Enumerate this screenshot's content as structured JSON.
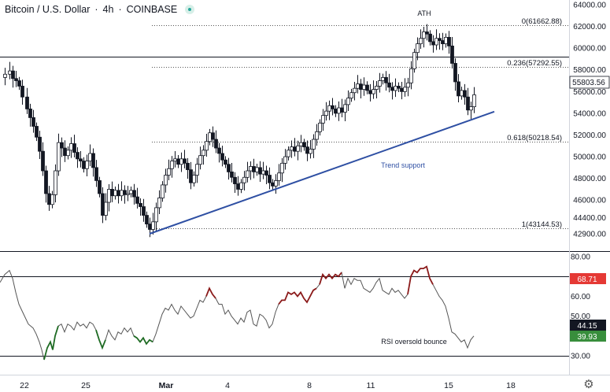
{
  "header": {
    "symbol": "Bitcoin / U.S. Dollar",
    "separator1": "·",
    "interval": "4h",
    "separator2": "·",
    "exchange": "COINBASE",
    "status_icon": "live-status-dot"
  },
  "chart_data": [
    {
      "type": "candlestick",
      "title": "Bitcoin / U.S. Dollar · 4h · COINBASE",
      "y_ticks": [
        64000,
        62000,
        60000,
        58000,
        56000,
        54000,
        52000,
        50000,
        48000,
        46000,
        44400,
        42900
      ],
      "y_tick_labels": [
        "64000.00",
        "62000.00",
        "60000.00",
        "58000.00",
        "56000.00",
        "54000.00",
        "52000.00",
        "50000.00",
        "48000.00",
        "46000.00",
        "44400.00",
        "42900.00"
      ],
      "x_tick_labels": [
        "22",
        "25",
        "Mar",
        "4",
        "8",
        "11",
        "15",
        "18"
      ],
      "price_series": [
        [
          0,
          57300
        ],
        [
          6,
          57600
        ],
        [
          12,
          57900
        ],
        [
          16,
          57200
        ],
        [
          20,
          57000
        ],
        [
          24,
          56500
        ],
        [
          28,
          55500
        ],
        [
          34,
          54400
        ],
        [
          38,
          53600
        ],
        [
          42,
          52800
        ],
        [
          46,
          51800
        ],
        [
          50,
          50500
        ],
        [
          54,
          48700
        ],
        [
          58,
          46600
        ],
        [
          62,
          45600
        ],
        [
          66,
          46500
        ],
        [
          70,
          48700
        ],
        [
          74,
          51300
        ],
        [
          78,
          50800
        ],
        [
          82,
          50100
        ],
        [
          86,
          50600
        ],
        [
          90,
          51200
        ],
        [
          94,
          50400
        ],
        [
          98,
          49800
        ],
        [
          102,
          49600
        ],
        [
          106,
          48900
        ],
        [
          110,
          49600
        ],
        [
          114,
          50300
        ],
        [
          118,
          49000
        ],
        [
          122,
          47800
        ],
        [
          126,
          46600
        ],
        [
          130,
          44600
        ],
        [
          134,
          45800
        ],
        [
          138,
          47000
        ],
        [
          142,
          46400
        ],
        [
          146,
          46900
        ],
        [
          150,
          46400
        ],
        [
          154,
          46900
        ],
        [
          158,
          46500
        ],
        [
          162,
          46600
        ],
        [
          166,
          46900
        ],
        [
          170,
          46300
        ],
        [
          174,
          45700
        ],
        [
          178,
          45400
        ],
        [
          182,
          44600
        ],
        [
          186,
          43800
        ],
        [
          190,
          43300
        ],
        [
          194,
          44000
        ],
        [
          198,
          45300
        ],
        [
          202,
          46200
        ],
        [
          206,
          47400
        ],
        [
          210,
          48300
        ],
        [
          214,
          48900
        ],
        [
          218,
          49600
        ],
        [
          222,
          49800
        ],
        [
          226,
          49300
        ],
        [
          230,
          49800
        ],
        [
          234,
          49400
        ],
        [
          238,
          48800
        ],
        [
          242,
          47600
        ],
        [
          246,
          48300
        ],
        [
          250,
          49300
        ],
        [
          254,
          50100
        ],
        [
          258,
          50600
        ],
        [
          262,
          51400
        ],
        [
          266,
          52200
        ],
        [
          270,
          51600
        ],
        [
          274,
          50800
        ],
        [
          278,
          50300
        ],
        [
          282,
          49700
        ],
        [
          286,
          49300
        ],
        [
          290,
          48600
        ],
        [
          294,
          48100
        ],
        [
          298,
          47500
        ],
        [
          302,
          47000
        ],
        [
          306,
          47600
        ],
        [
          310,
          48100
        ],
        [
          314,
          48700
        ],
        [
          318,
          49100
        ],
        [
          322,
          48600
        ],
        [
          326,
          49000
        ],
        [
          330,
          48400
        ],
        [
          334,
          48700
        ],
        [
          338,
          48300
        ],
        [
          342,
          47600
        ],
        [
          346,
          47300
        ],
        [
          350,
          47800
        ],
        [
          354,
          48500
        ],
        [
          358,
          49400
        ],
        [
          362,
          50000
        ],
        [
          366,
          50600
        ],
        [
          370,
          50900
        ],
        [
          374,
          50500
        ],
        [
          378,
          51000
        ],
        [
          382,
          51300
        ],
        [
          386,
          50900
        ],
        [
          390,
          50300
        ],
        [
          394,
          50700
        ],
        [
          398,
          51600
        ],
        [
          402,
          52300
        ],
        [
          406,
          53100
        ],
        [
          410,
          53800
        ],
        [
          414,
          54200
        ],
        [
          418,
          54700
        ],
        [
          422,
          54400
        ],
        [
          426,
          54000
        ],
        [
          430,
          54500
        ],
        [
          434,
          54100
        ],
        [
          438,
          54800
        ],
        [
          442,
          55400
        ],
        [
          446,
          55900
        ],
        [
          450,
          56300
        ],
        [
          454,
          56700
        ],
        [
          458,
          56200
        ],
        [
          462,
          56600
        ],
        [
          466,
          56100
        ],
        [
          470,
          55800
        ],
        [
          474,
          56200
        ],
        [
          478,
          56500
        ],
        [
          482,
          57000
        ],
        [
          486,
          57300
        ],
        [
          490,
          56800
        ],
        [
          494,
          56400
        ],
        [
          498,
          56100
        ],
        [
          502,
          56500
        ],
        [
          506,
          56300
        ],
        [
          510,
          56000
        ],
        [
          514,
          56400
        ],
        [
          518,
          56800
        ],
        [
          522,
          58100
        ],
        [
          526,
          59600
        ],
        [
          530,
          60400
        ],
        [
          534,
          60900
        ],
        [
          538,
          61500
        ],
        [
          542,
          61300
        ],
        [
          546,
          60600
        ],
        [
          550,
          60300
        ],
        [
          554,
          60900
        ],
        [
          558,
          60700
        ],
        [
          562,
          60400
        ],
        [
          566,
          61000
        ],
        [
          570,
          60200
        ],
        [
          574,
          58600
        ],
        [
          578,
          56900
        ],
        [
          582,
          55600
        ],
        [
          586,
          56100
        ],
        [
          590,
          55500
        ],
        [
          594,
          54300
        ],
        [
          598,
          54600
        ],
        [
          602,
          55700
        ]
      ],
      "price_line_values": [
        61662.88,
        57292.55,
        50218.54,
        43144.53
      ],
      "ath_marker": {
        "x": 538,
        "price": 61700
      },
      "reference_line_price": 57900,
      "trend_support": {
        "start": [
          190,
          42900
        ],
        "end": [
          628,
          54150
        ]
      }
    },
    {
      "type": "line",
      "y_ticks": [
        80,
        70,
        60,
        50,
        40,
        30
      ],
      "y_tick_labels": [
        "80.00",
        "70.00",
        "60.00",
        "50.00",
        "40.00",
        "30.00"
      ],
      "overbought_line": 70,
      "oversold_line": 30,
      "rsi_series": [
        [
          0,
          67
        ],
        [
          6,
          71
        ],
        [
          12,
          73
        ],
        [
          16,
          69
        ],
        [
          20,
          62
        ],
        [
          24,
          56
        ],
        [
          30,
          51
        ],
        [
          36,
          46
        ],
        [
          42,
          44
        ],
        [
          46,
          41
        ],
        [
          50,
          37
        ],
        [
          53,
          33
        ],
        [
          56,
          28
        ],
        [
          60,
          34
        ],
        [
          64,
          37
        ],
        [
          67,
          33
        ],
        [
          70,
          40
        ],
        [
          74,
          45
        ],
        [
          78,
          46
        ],
        [
          82,
          42
        ],
        [
          86,
          46
        ],
        [
          90,
          45
        ],
        [
          94,
          43
        ],
        [
          98,
          47
        ],
        [
          102,
          45
        ],
        [
          106,
          46
        ],
        [
          110,
          44
        ],
        [
          114,
          47
        ],
        [
          118,
          46
        ],
        [
          122,
          43
        ],
        [
          126,
          38
        ],
        [
          130,
          34
        ],
        [
          134,
          38
        ],
        [
          138,
          43
        ],
        [
          142,
          40
        ],
        [
          146,
          38
        ],
        [
          150,
          42
        ],
        [
          154,
          41
        ],
        [
          158,
          44
        ],
        [
          162,
          42
        ],
        [
          166,
          44
        ],
        [
          170,
          40
        ],
        [
          174,
          39
        ],
        [
          178,
          37
        ],
        [
          182,
          39
        ],
        [
          186,
          36
        ],
        [
          190,
          38
        ],
        [
          194,
          37
        ],
        [
          198,
          41
        ],
        [
          202,
          46
        ],
        [
          206,
          51
        ],
        [
          210,
          54
        ],
        [
          214,
          53
        ],
        [
          218,
          56
        ],
        [
          222,
          53
        ],
        [
          226,
          51
        ],
        [
          230,
          55
        ],
        [
          234,
          53
        ],
        [
          238,
          51
        ],
        [
          242,
          49
        ],
        [
          246,
          50
        ],
        [
          250,
          54
        ],
        [
          254,
          58
        ],
        [
          258,
          57
        ],
        [
          262,
          60
        ],
        [
          266,
          64
        ],
        [
          270,
          61
        ],
        [
          274,
          59
        ],
        [
          278,
          56
        ],
        [
          282,
          56
        ],
        [
          286,
          51
        ],
        [
          290,
          53
        ],
        [
          294,
          50
        ],
        [
          298,
          48
        ],
        [
          302,
          46
        ],
        [
          306,
          49
        ],
        [
          310,
          47
        ],
        [
          314,
          52
        ],
        [
          318,
          53
        ],
        [
          322,
          46
        ],
        [
          326,
          45
        ],
        [
          330,
          51
        ],
        [
          334,
          50
        ],
        [
          338,
          48
        ],
        [
          342,
          44
        ],
        [
          346,
          46
        ],
        [
          350,
          52
        ],
        [
          354,
          56
        ],
        [
          358,
          58
        ],
        [
          362,
          58
        ],
        [
          366,
          62
        ],
        [
          370,
          61
        ],
        [
          374,
          62
        ],
        [
          378,
          60
        ],
        [
          382,
          62
        ],
        [
          386,
          59
        ],
        [
          390,
          57
        ],
        [
          394,
          60
        ],
        [
          398,
          63
        ],
        [
          402,
          64
        ],
        [
          406,
          66
        ],
        [
          410,
          71
        ],
        [
          414,
          69
        ],
        [
          418,
          71
        ],
        [
          422,
          69
        ],
        [
          426,
          71
        ],
        [
          430,
          70
        ],
        [
          434,
          72
        ],
        [
          438,
          64
        ],
        [
          442,
          69
        ],
        [
          446,
          66
        ],
        [
          450,
          69
        ],
        [
          454,
          68
        ],
        [
          458,
          68
        ],
        [
          462,
          64
        ],
        [
          466,
          63
        ],
        [
          470,
          62
        ],
        [
          474,
          64
        ],
        [
          478,
          67
        ],
        [
          482,
          69
        ],
        [
          486,
          63
        ],
        [
          490,
          62
        ],
        [
          494,
          61
        ],
        [
          498,
          64
        ],
        [
          502,
          62
        ],
        [
          506,
          63
        ],
        [
          510,
          61
        ],
        [
          514,
          59
        ],
        [
          518,
          61
        ],
        [
          522,
          70
        ],
        [
          526,
          73
        ],
        [
          530,
          72
        ],
        [
          534,
          74
        ],
        [
          538,
          74
        ],
        [
          542,
          75
        ],
        [
          546,
          69
        ],
        [
          550,
          66
        ],
        [
          554,
          63
        ],
        [
          558,
          60
        ],
        [
          562,
          58
        ],
        [
          566,
          55
        ],
        [
          570,
          49
        ],
        [
          574,
          42
        ],
        [
          578,
          41
        ],
        [
          582,
          39
        ],
        [
          586,
          37
        ],
        [
          590,
          38
        ],
        [
          594,
          34
        ],
        [
          598,
          38
        ],
        [
          602,
          40
        ]
      ],
      "highlight_segments": {
        "oversold_green": [
          [
            56,
            74
          ],
          [
            122,
            134
          ],
          [
            170,
            194
          ]
        ],
        "overbought_red": [
          [
            262,
            274
          ],
          [
            354,
            402
          ],
          [
            406,
            434
          ],
          [
            518,
            550
          ]
        ]
      }
    }
  ],
  "price_axis": {
    "labels": [
      "64000.00",
      "62000.00",
      "60000.00",
      "58000.00",
      "56000.00",
      "54000.00",
      "52000.00",
      "50000.00",
      "48000.00",
      "46000.00",
      "44400.00",
      "42900.00"
    ],
    "current_price": "55803.56"
  },
  "rsi_axis": {
    "labels": [
      "80.00",
      "70.00",
      "60.00",
      "50.00",
      "40.00",
      "30.00"
    ],
    "tag_red": "68.71",
    "tag_black": "44.15",
    "tag_green": "39.93"
  },
  "time_axis": {
    "labels": [
      "22",
      "25",
      "Mar",
      "4",
      "8",
      "11",
      "15",
      "18"
    ]
  },
  "annotations": {
    "ath": "ATH",
    "fib_0": "0(61662.88)",
    "fib_0236": "0.236(57292.55)",
    "fib_0618": "0.618(50218.54)",
    "fib_1": "1(43144.53)",
    "trend_support": "Trend support",
    "rsi_note": "RSI oversold bounce"
  },
  "colors": {
    "up": "#26a69a",
    "down": "#131722",
    "candle_body_up": "#ffffff",
    "trendline": "#2e4fa3",
    "rsi_line": "#555555",
    "rsi_green": "#1e6b23",
    "rsi_red": "#8b1a1a",
    "tag_red_bg": "#e53935",
    "tag_black_bg": "#131722",
    "tag_green_bg": "#388e3c",
    "current_price_bg": "#ffffff"
  },
  "icons": {
    "settings": "gear-icon"
  }
}
